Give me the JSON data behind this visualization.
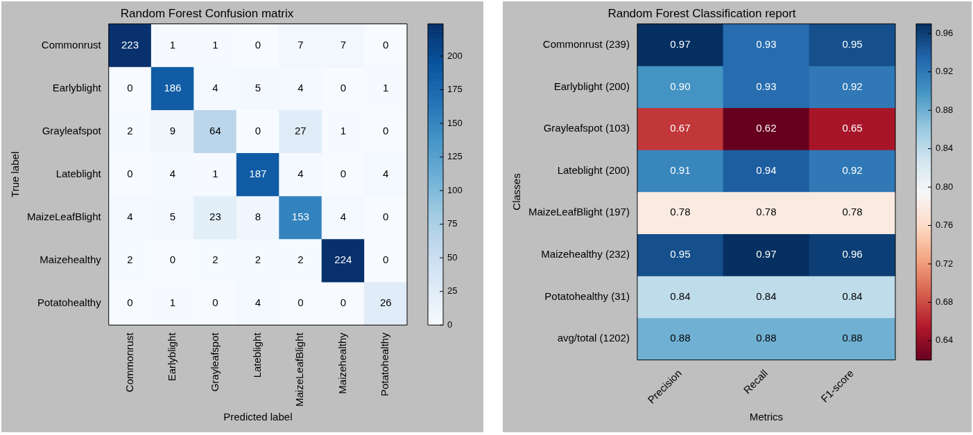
{
  "chart_data": [
    {
      "type": "heatmap",
      "title": "Random Forest Confusion matrix",
      "xlabel": "Predicted label",
      "ylabel": "True label",
      "categories": [
        "Commonrust",
        "Earlyblight",
        "Grayleafspot",
        "Lateblight",
        "MaizeLeafBlight",
        "Maizehealthy",
        "Potatohealthy"
      ],
      "y_categories": [
        "Commonrust",
        "Earlyblight",
        "Grayleafspot",
        "Lateblight",
        "MaizeLeafBlight",
        "Maizehealthy",
        "Potatohealthy"
      ],
      "cells": [
        [
          223,
          1,
          1,
          0,
          7,
          7,
          0
        ],
        [
          0,
          186,
          4,
          5,
          4,
          0,
          1
        ],
        [
          2,
          9,
          64,
          0,
          27,
          1,
          0
        ],
        [
          0,
          4,
          1,
          187,
          4,
          0,
          4
        ],
        [
          4,
          5,
          23,
          8,
          153,
          4,
          0
        ],
        [
          2,
          0,
          2,
          2,
          2,
          224,
          0
        ],
        [
          0,
          1,
          0,
          4,
          0,
          0,
          26
        ]
      ],
      "data_labels": true,
      "clim": [
        0,
        224
      ],
      "cticks": [
        0,
        25,
        50,
        75,
        100,
        125,
        150,
        175,
        200
      ]
    },
    {
      "type": "heatmap",
      "title": "Random Forest Classification report",
      "xlabel": "Metrics",
      "ylabel": "Classes",
      "categories": [
        "Precision",
        "Recall",
        "F1-score"
      ],
      "y_categories": [
        "Commonrust (239)",
        "Earlyblight (200)",
        "Grayleafspot (103)",
        "Lateblight (200)",
        "MaizeLeafBlight (197)",
        "Maizehealthy (232)",
        "Potatohealthy (31)",
        "avg/total (1202)"
      ],
      "cells": [
        [
          0.97,
          0.93,
          0.95
        ],
        [
          0.9,
          0.93,
          0.92
        ],
        [
          0.67,
          0.62,
          0.65
        ],
        [
          0.91,
          0.94,
          0.92
        ],
        [
          0.78,
          0.78,
          0.78
        ],
        [
          0.95,
          0.97,
          0.96
        ],
        [
          0.84,
          0.84,
          0.84
        ],
        [
          0.88,
          0.88,
          0.88
        ]
      ],
      "cell_labels": [
        [
          "0.97",
          "0.93",
          "0.95"
        ],
        [
          "0.90",
          "0.93",
          "0.92"
        ],
        [
          "0.67",
          "0.62",
          "0.65"
        ],
        [
          "0.91",
          "0.94",
          "0.92"
        ],
        [
          "0.78",
          "0.78",
          "0.78"
        ],
        [
          "0.95",
          "0.97",
          "0.96"
        ],
        [
          "0.84",
          "0.84",
          "0.84"
        ],
        [
          "0.88",
          "0.88",
          "0.88"
        ]
      ],
      "clim": [
        0.62,
        0.97
      ],
      "cticks": [
        {
          "value": 0.64,
          "label": "0.64"
        },
        {
          "value": 0.68,
          "label": "0.68"
        },
        {
          "value": 0.72,
          "label": "0.72"
        },
        {
          "value": 0.76,
          "label": "0.76"
        },
        {
          "value": 0.8,
          "label": "0.80"
        },
        {
          "value": 0.84,
          "label": "0.84"
        },
        {
          "value": 0.88,
          "label": "0.88"
        },
        {
          "value": 0.92,
          "label": "0.92"
        },
        {
          "value": 0.96,
          "label": "0.96"
        }
      ]
    }
  ]
}
